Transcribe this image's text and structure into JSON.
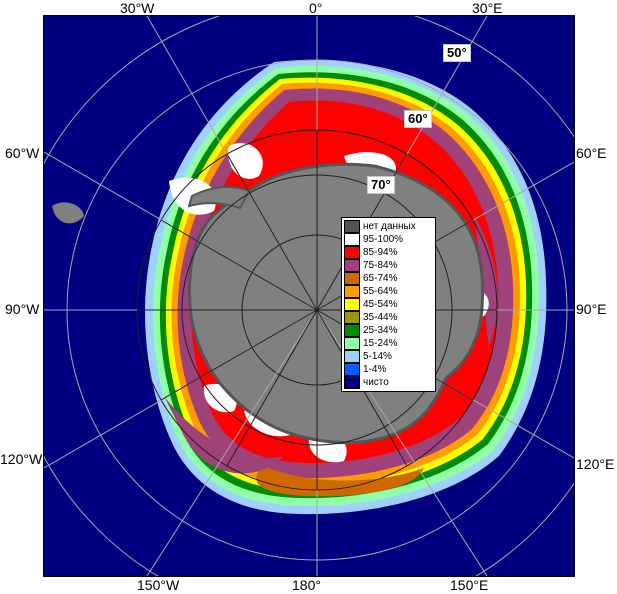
{
  "map": {
    "longitude_labels": {
      "top": [
        "30°W",
        "0°",
        "30°E"
      ],
      "bottom": [
        "150°W",
        "180°",
        "150°E"
      ],
      "left": [
        "60°W",
        "90°W",
        "120°W"
      ],
      "right": [
        "60°E",
        "90°E",
        "120°E"
      ]
    },
    "latitude_labels": [
      "50°",
      "60°",
      "70°"
    ],
    "colors": {
      "ocean": "#000080",
      "land": "#808080",
      "land_outline": "#555555",
      "graticule": "#a8a8a8",
      "graticule_dark": "#202020"
    }
  },
  "legend": {
    "items": [
      {
        "label": "нет данных",
        "color": "#555555"
      },
      {
        "label": "95-100%",
        "color": "#ffffff"
      },
      {
        "label": "85-94%",
        "color": "#ff0000"
      },
      {
        "label": "75-84%",
        "color": "#a0427a"
      },
      {
        "label": "65-74%",
        "color": "#d06800"
      },
      {
        "label": "55-64%",
        "color": "#ff9a00"
      },
      {
        "label": "45-54%",
        "color": "#ffff00"
      },
      {
        "label": "35-44%",
        "color": "#9a9a00"
      },
      {
        "label": "25-34%",
        "color": "#008c00"
      },
      {
        "label": "15-24%",
        "color": "#90ffa8"
      },
      {
        "label": "5-14%",
        "color": "#a0d0ff"
      },
      {
        "label": "1-4%",
        "color": "#0060ff"
      },
      {
        "label": "чисто",
        "color": "#000080"
      }
    ]
  }
}
